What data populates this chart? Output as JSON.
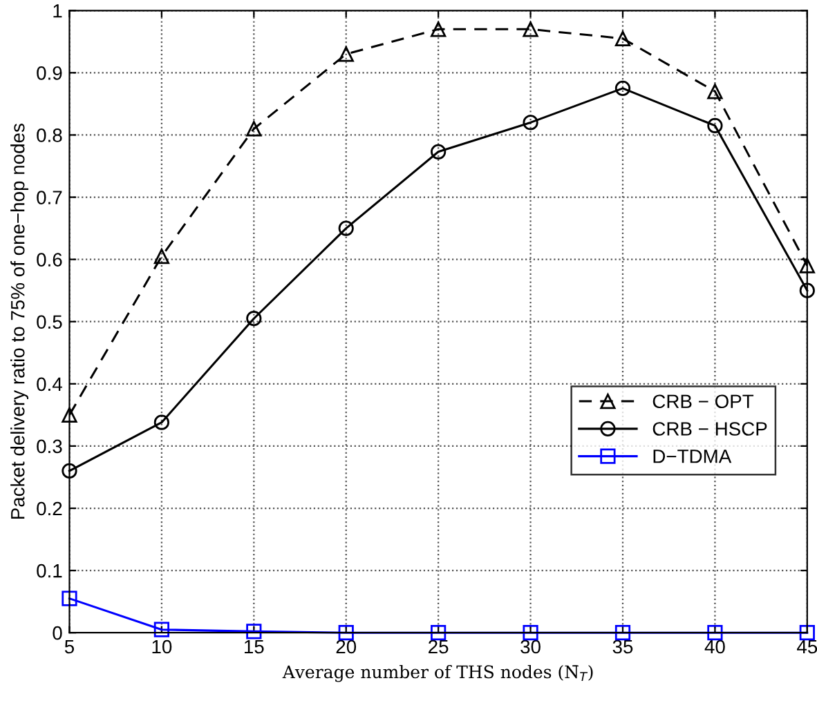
{
  "chart_data": {
    "type": "line",
    "xlabel": "Average number of THS nodes (N̄$_{T}$)",
    "ylabel": "Packet delivery ratio to 75% of one−hop nodes",
    "x": [
      5,
      10,
      15,
      20,
      25,
      30,
      35,
      40,
      45
    ],
    "series": [
      {
        "name": "CRB − OPT",
        "color": "#000000",
        "marker": "triangle",
        "line_style": "dashed",
        "values": [
          0.35,
          0.605,
          0.81,
          0.93,
          0.97,
          0.97,
          0.955,
          0.87,
          0.59
        ]
      },
      {
        "name": "CRB − HSCP",
        "color": "#000000",
        "marker": "circle",
        "line_style": "solid",
        "values": [
          0.26,
          0.338,
          0.505,
          0.65,
          0.773,
          0.82,
          0.875,
          0.815,
          0.55
        ]
      },
      {
        "name": "D−TDMA",
        "color": "#0000ff",
        "marker": "square",
        "line_style": "solid",
        "values": [
          0.055,
          0.005,
          0.002,
          0,
          0,
          0,
          0,
          0,
          0
        ]
      }
    ],
    "xlim": [
      5,
      45
    ],
    "xticks": [
      5,
      10,
      15,
      20,
      25,
      30,
      35,
      40,
      45
    ],
    "ylim": [
      0,
      1
    ],
    "yticks": [
      0,
      0.1,
      0.2,
      0.3,
      0.4,
      0.5,
      0.6,
      0.7,
      0.8,
      0.9,
      1
    ],
    "grid": true,
    "legend": "center right"
  }
}
